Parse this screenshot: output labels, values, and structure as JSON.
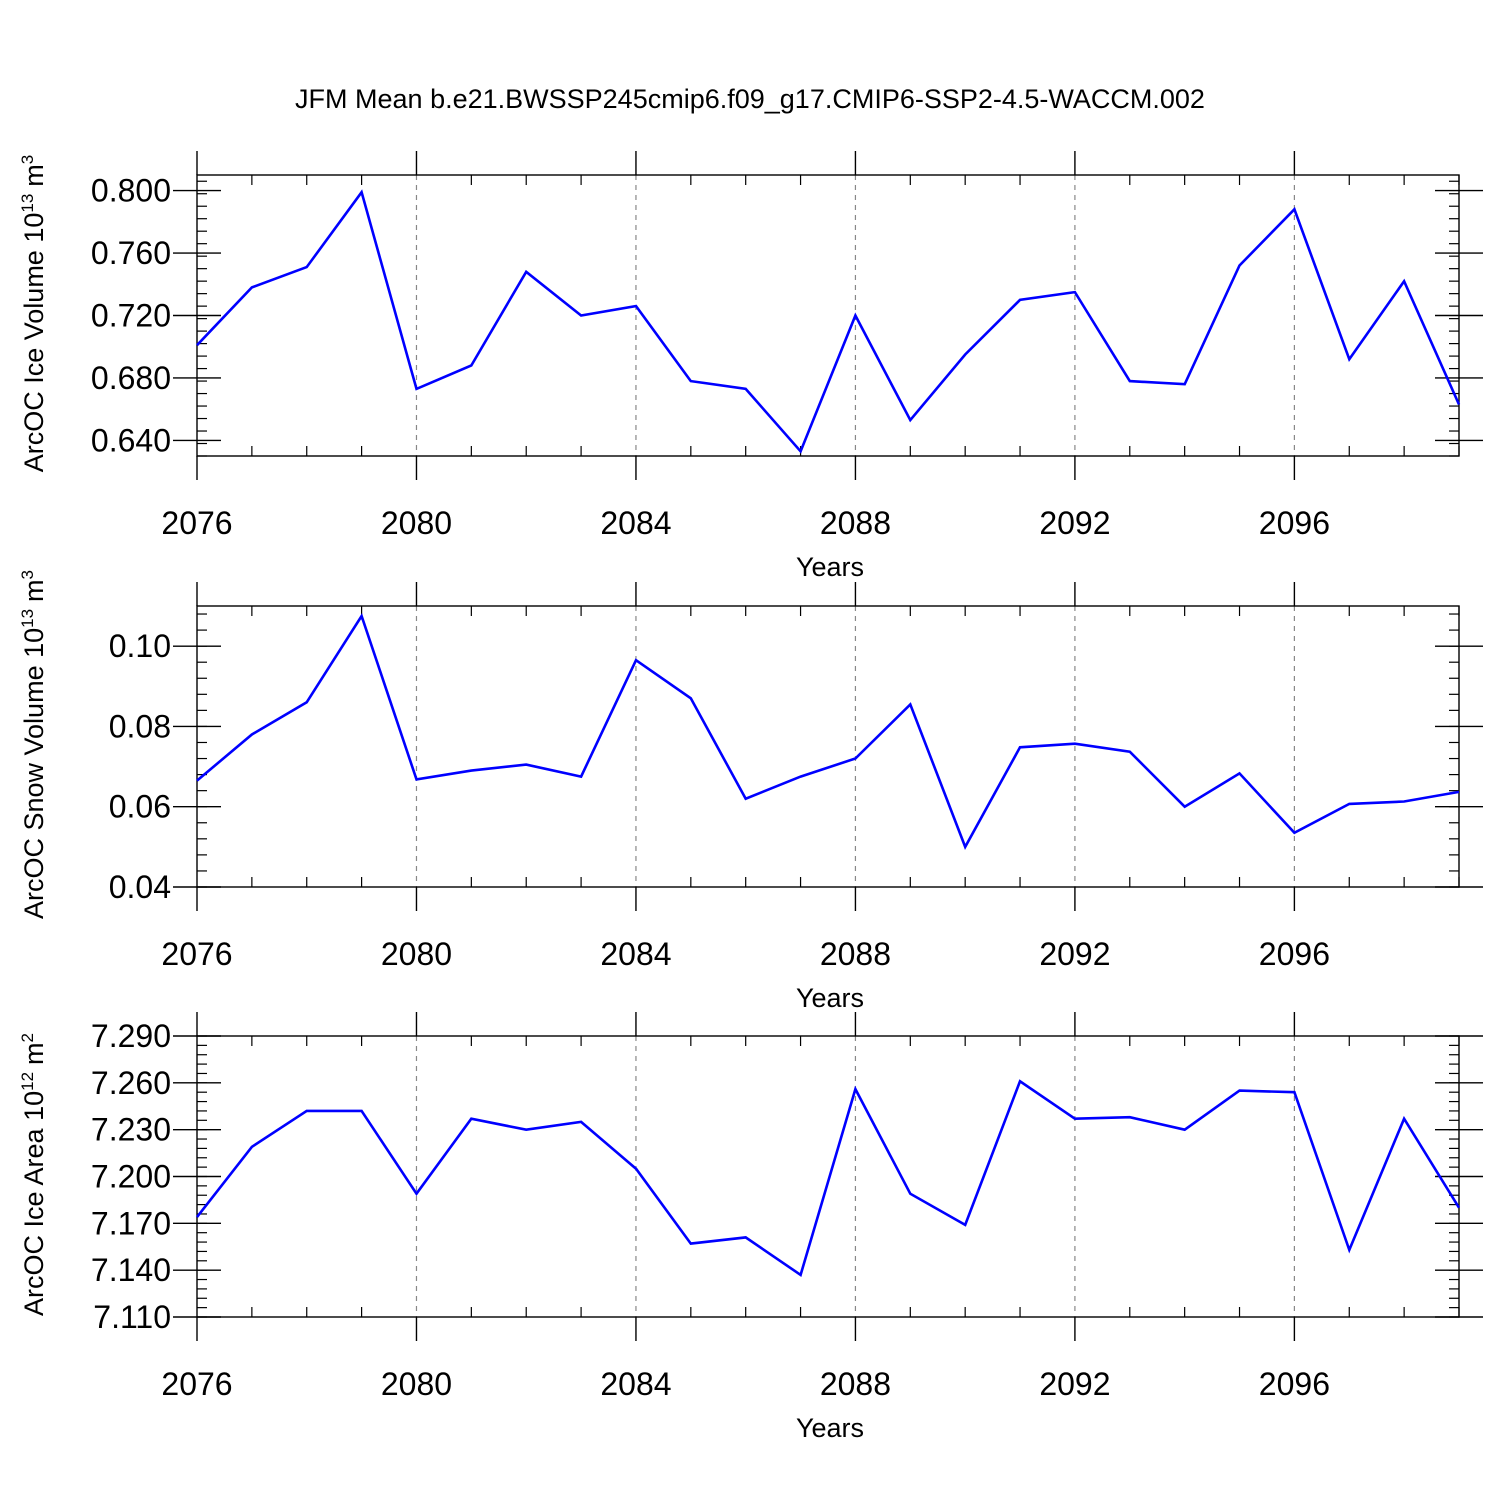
{
  "title": "JFM Mean b.e21.BWSSP245cmip6.f09_g17.CMIP6-SSP2-4.5-WACCM.002",
  "chart_data": [
    {
      "type": "line",
      "ylabel": "ArcOC Ice Volume 10",
      "ylabel_exp": "13",
      "ylabel_unit": "m",
      "ylabel_unit_exp": "3",
      "xlabel": "Years",
      "xlim": [
        2076,
        2099
      ],
      "ylim": [
        0.63,
        0.81
      ],
      "yticks": [
        0.64,
        0.68,
        0.72,
        0.76,
        0.8
      ],
      "ytick_labels": [
        "0.640",
        "0.680",
        "0.720",
        "0.760",
        "0.800"
      ],
      "xticks": [
        2076,
        2080,
        2084,
        2088,
        2092,
        2096
      ],
      "xtick_labels": [
        "2076",
        "2080",
        "2084",
        "2088",
        "2092",
        "2096"
      ],
      "line_color": "#0000ff",
      "x": [
        2076,
        2077,
        2078,
        2079,
        2080,
        2081,
        2082,
        2083,
        2084,
        2085,
        2086,
        2087,
        2088,
        2089,
        2090,
        2091,
        2092,
        2093,
        2094,
        2095,
        2096,
        2097,
        2098,
        2099
      ],
      "values": [
        0.701,
        0.738,
        0.751,
        0.799,
        0.673,
        0.688,
        0.748,
        0.72,
        0.726,
        0.678,
        0.673,
        0.633,
        0.72,
        0.653,
        0.695,
        0.73,
        0.735,
        0.678,
        0.676,
        0.752,
        0.788,
        0.692,
        0.742,
        0.663
      ]
    },
    {
      "type": "line",
      "ylabel": "ArcOC Snow Volume 10",
      "ylabel_exp": "13",
      "ylabel_unit": "m",
      "ylabel_unit_exp": "3",
      "xlabel": "Years",
      "xlim": [
        2076,
        2099
      ],
      "ylim": [
        0.04,
        0.11
      ],
      "yticks": [
        0.04,
        0.06,
        0.08,
        0.1
      ],
      "ytick_labels": [
        "0.04",
        "0.06",
        "0.08",
        "0.10"
      ],
      "xticks": [
        2076,
        2080,
        2084,
        2088,
        2092,
        2096
      ],
      "xtick_labels": [
        "2076",
        "2080",
        "2084",
        "2088",
        "2092",
        "2096"
      ],
      "line_color": "#0000ff",
      "x": [
        2076,
        2077,
        2078,
        2079,
        2080,
        2081,
        2082,
        2083,
        2084,
        2085,
        2086,
        2087,
        2088,
        2089,
        2090,
        2091,
        2092,
        2093,
        2094,
        2095,
        2096,
        2097,
        2098,
        2099
      ],
      "values": [
        0.0665,
        0.078,
        0.086,
        0.1075,
        0.0668,
        0.069,
        0.0705,
        0.0675,
        0.0965,
        0.087,
        0.062,
        0.0675,
        0.072,
        0.0855,
        0.05,
        0.0748,
        0.0757,
        0.0737,
        0.06,
        0.0683,
        0.0535,
        0.0607,
        0.0613,
        0.0637
      ]
    },
    {
      "type": "line",
      "ylabel": "ArcOC Ice Area 10",
      "ylabel_exp": "12",
      "ylabel_unit": "m",
      "ylabel_unit_exp": "2",
      "xlabel": "Years",
      "xlim": [
        2076,
        2099
      ],
      "ylim": [
        7.11,
        7.29
      ],
      "yticks": [
        7.11,
        7.14,
        7.17,
        7.2,
        7.23,
        7.26,
        7.29
      ],
      "ytick_labels": [
        "7.110",
        "7.140",
        "7.170",
        "7.200",
        "7.230",
        "7.260",
        "7.290"
      ],
      "xticks": [
        2076,
        2080,
        2084,
        2088,
        2092,
        2096
      ],
      "xtick_labels": [
        "2076",
        "2080",
        "2084",
        "2088",
        "2092",
        "2096"
      ],
      "line_color": "#0000ff",
      "x": [
        2076,
        2077,
        2078,
        2079,
        2080,
        2081,
        2082,
        2083,
        2084,
        2085,
        2086,
        2087,
        2088,
        2089,
        2090,
        2091,
        2092,
        2093,
        2094,
        2095,
        2096,
        2097,
        2098,
        2099
      ],
      "values": [
        7.174,
        7.219,
        7.242,
        7.242,
        7.189,
        7.237,
        7.23,
        7.235,
        7.205,
        7.157,
        7.161,
        7.137,
        7.256,
        7.189,
        7.169,
        7.261,
        7.237,
        7.238,
        7.23,
        7.255,
        7.254,
        7.153,
        7.237,
        7.18
      ]
    }
  ]
}
